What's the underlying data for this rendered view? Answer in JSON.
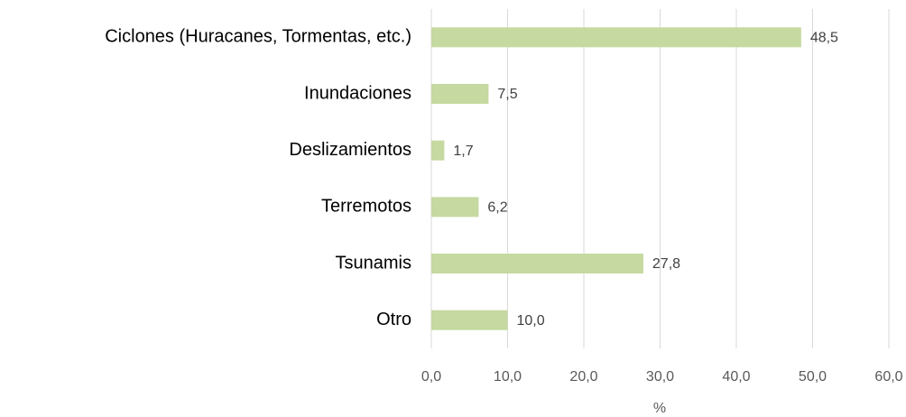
{
  "chart_data": {
    "type": "bar",
    "orientation": "horizontal",
    "categories": [
      "Ciclones (Huracanes, Tormentas, etc.)",
      "Inundaciones",
      "Deslizamientos",
      "Terremotos",
      "Tsunamis",
      "Otro"
    ],
    "values": [
      48.5,
      7.5,
      1.7,
      6.2,
      27.8,
      10.0
    ],
    "value_labels": [
      "48,5",
      "7,5",
      "1,7",
      "6,2",
      "27,8",
      "10,0"
    ],
    "color": "#c5d9a0",
    "xlabel": "%",
    "xlim": [
      0,
      60
    ],
    "xticks": [
      {
        "value": 0,
        "label": "0,0"
      },
      {
        "value": 10,
        "label": "10,0"
      },
      {
        "value": 20,
        "label": "20,0"
      },
      {
        "value": 30,
        "label": "30,0"
      },
      {
        "value": 40,
        "label": "40,0"
      },
      {
        "value": 50,
        "label": "50,0"
      },
      {
        "value": 60,
        "label": "60,0"
      }
    ],
    "grid": true
  }
}
